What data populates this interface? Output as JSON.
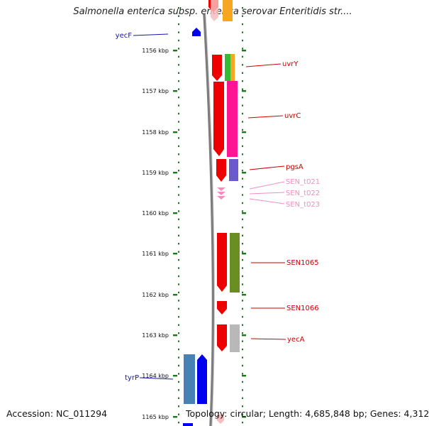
{
  "title": "Salmonella enterica subsp. enterica serovar Enteritidis str....",
  "footer": {
    "accession": "Accession: NC_011294",
    "stats": "Topology: circular; Length: 4,685,848 bp; Genes: 4,312"
  },
  "colors": {
    "forward_gene": "#ee0000",
    "tick": "#1a7a1a",
    "left_label": "#1515aa",
    "right_label": "#cc0000",
    "trna_label": "#ee8fbf",
    "backbone": "#8a8a8a"
  },
  "axis": {
    "unit": "kbp",
    "labels": [
      "1156 kbp",
      "1157 kbp",
      "1158 kbp",
      "1159 kbp",
      "1160 kbp",
      "1161 kbp",
      "1162 kbp",
      "1163 kbp",
      "1164 kbp",
      "1165 kbp"
    ]
  },
  "genes_left": [
    {
      "name": "yecF",
      "color": "#0000ee"
    },
    {
      "name": "tyrP",
      "color": "#0000ee"
    }
  ],
  "genes_right": [
    {
      "name": "uvrY",
      "color": "#cc0000"
    },
    {
      "name": "uvrC",
      "color": "#cc0000"
    },
    {
      "name": "pgsA",
      "color": "#cc0000"
    },
    {
      "name": "SEN_t021",
      "color": "#ee8fbf"
    },
    {
      "name": "SEN_t022",
      "color": "#ee8fbf"
    },
    {
      "name": "SEN_t023",
      "color": "#ee8fbf"
    },
    {
      "name": "SEN1065",
      "color": "#cc0000"
    },
    {
      "name": "SEN1066",
      "color": "#cc0000"
    },
    {
      "name": "yecA",
      "color": "#cc0000"
    }
  ]
}
